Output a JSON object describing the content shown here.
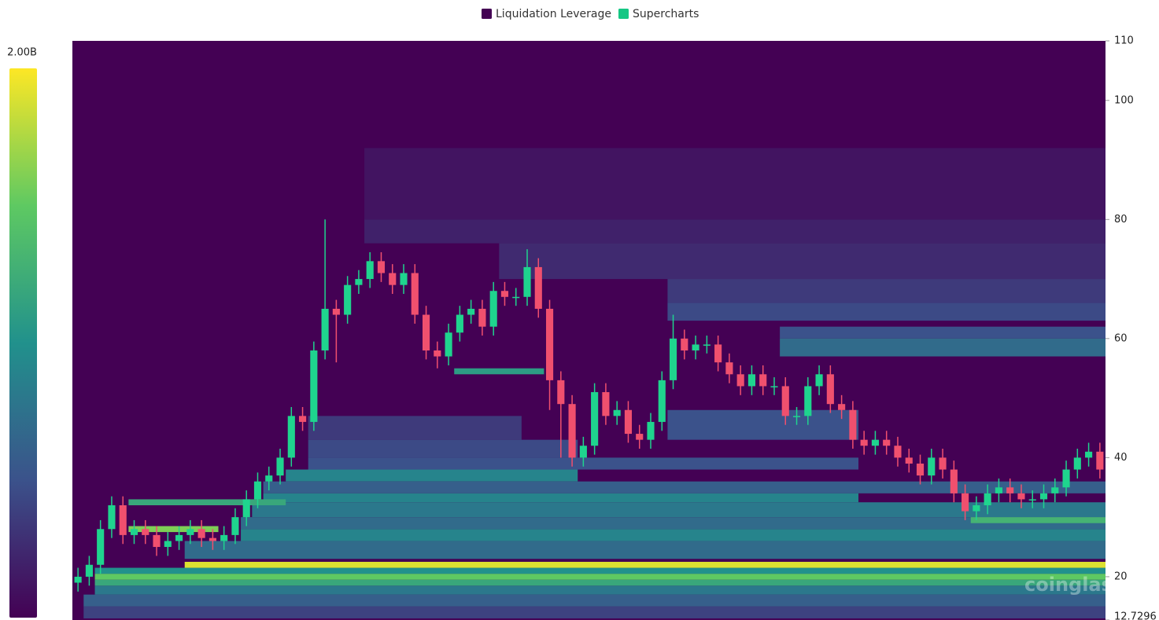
{
  "chart_data": {
    "type": "candlestick",
    "watermark": "coinglass",
    "ylim": [
      12.7296,
      110
    ],
    "yticks": [
      12.7296,
      20,
      40,
      60,
      80,
      100,
      110
    ],
    "heatmap": {
      "name": "Liquidation Leverage",
      "color": "#440154",
      "color_max": {
        "value": 2000000000,
        "label": "2.00B"
      },
      "bands": [
        {
          "from": 26,
          "to": 92,
          "low": 80,
          "high": 92,
          "value": 120000000
        },
        {
          "from": 26,
          "to": 92,
          "low": 76,
          "high": 80,
          "value": 200000000
        },
        {
          "from": 38,
          "to": 92,
          "low": 70,
          "high": 76,
          "value": 250000000
        },
        {
          "from": 53,
          "to": 92,
          "low": 66,
          "high": 70,
          "value": 350000000
        },
        {
          "from": 53,
          "to": 92,
          "low": 63,
          "high": 66,
          "value": 450000000
        },
        {
          "from": 63,
          "to": 92,
          "low": 60,
          "high": 62,
          "value": 500000000
        },
        {
          "from": 63,
          "to": 92,
          "low": 57,
          "high": 60,
          "value": 700000000
        },
        {
          "from": 21,
          "to": 40,
          "low": 43,
          "high": 47,
          "value": 350000000
        },
        {
          "from": 53,
          "to": 70,
          "low": 43,
          "high": 48,
          "value": 500000000
        },
        {
          "from": 21,
          "to": 45,
          "low": 40,
          "high": 43,
          "value": 450000000
        },
        {
          "from": 21,
          "to": 70,
          "low": 38,
          "high": 40,
          "value": 500000000
        },
        {
          "from": 19,
          "to": 45,
          "low": 36,
          "high": 38,
          "value": 900000000
        },
        {
          "from": 17,
          "to": 92,
          "low": 34,
          "high": 36,
          "value": 600000000
        },
        {
          "from": 17,
          "to": 70,
          "low": 32.5,
          "high": 34,
          "value": 900000000
        },
        {
          "from": 16,
          "to": 92,
          "low": 30,
          "high": 32.5,
          "value": 800000000
        },
        {
          "from": 15,
          "to": 92,
          "low": 28,
          "high": 30,
          "value": 700000000
        },
        {
          "from": 15,
          "to": 92,
          "low": 26,
          "high": 28,
          "value": 900000000
        },
        {
          "from": 10,
          "to": 92,
          "low": 23,
          "high": 26,
          "value": 700000000
        },
        {
          "from": 1,
          "to": 92,
          "low": 13,
          "high": 15,
          "value": 400000000
        },
        {
          "from": 1,
          "to": 92,
          "low": 15,
          "high": 17,
          "value": 600000000
        },
        {
          "from": 2,
          "to": 92,
          "low": 17,
          "high": 18.5,
          "value": 800000000
        },
        {
          "from": 2,
          "to": 92,
          "low": 18.5,
          "high": 19.5,
          "value": 1200000000
        },
        {
          "from": 2,
          "to": 92,
          "low": 19.5,
          "high": 20.5,
          "value": 1500000000
        },
        {
          "from": 2,
          "to": 92,
          "low": 20.5,
          "high": 21.5,
          "value": 1000000000
        },
        {
          "from": 10,
          "to": 92,
          "low": 21.5,
          "high": 22.5,
          "value": 1900000000
        },
        {
          "from": 5,
          "to": 13,
          "low": 27.5,
          "high": 28.5,
          "value": 1600000000
        },
        {
          "from": 5,
          "to": 19,
          "low": 32,
          "high": 33,
          "value": 1200000000
        },
        {
          "from": 34,
          "to": 42,
          "low": 54,
          "high": 55,
          "value": 1100000000
        },
        {
          "from": 80,
          "to": 92,
          "low": 29,
          "high": 30,
          "value": 1300000000
        }
      ]
    },
    "series": [
      {
        "name": "Supercharts",
        "color": "#16c784",
        "up_color": "#1fd48e",
        "down_color": "#f0506e",
        "open": [
          19,
          20,
          22,
          28,
          32,
          27,
          28,
          27,
          25,
          26,
          27,
          28,
          26.5,
          26,
          27,
          30,
          33,
          36,
          37,
          40,
          47,
          46,
          58,
          65,
          64,
          69,
          70,
          73,
          71,
          69,
          71,
          64,
          58,
          57,
          61,
          64,
          65,
          62,
          68,
          67,
          67,
          72,
          65,
          53,
          49,
          40,
          42,
          51,
          47,
          48,
          44,
          43,
          46,
          53,
          60,
          58,
          59,
          59,
          56,
          54,
          52,
          54,
          52,
          52,
          47,
          47,
          52,
          54,
          49,
          48,
          43,
          42,
          43,
          42,
          40,
          39,
          37,
          40,
          38,
          34,
          31,
          32,
          34,
          35,
          34,
          33,
          33,
          34,
          35,
          38,
          40,
          41
        ],
        "high": [
          21.5,
          23.5,
          29.5,
          33.5,
          33.5,
          29.5,
          29.5,
          28.5,
          27.5,
          28.5,
          29.5,
          29.5,
          28,
          28.5,
          31.5,
          34.5,
          37.5,
          38.5,
          41.5,
          48.5,
          48.5,
          59.5,
          80,
          66.5,
          70.5,
          71.5,
          74.5,
          74.5,
          72.5,
          72.5,
          72.5,
          65.5,
          59.5,
          62.5,
          65.5,
          66.5,
          66.5,
          69.5,
          69.5,
          68.5,
          75,
          73.5,
          66.5,
          54.5,
          50.5,
          43.5,
          52.5,
          52.5,
          49.5,
          49.5,
          45.5,
          47.5,
          54.5,
          64,
          61.5,
          60.5,
          60.5,
          60.5,
          57.5,
          55.5,
          55.5,
          55.5,
          53.5,
          53.5,
          48.5,
          53.5,
          55.5,
          55.5,
          50.5,
          49.5,
          44.5,
          44.5,
          44.5,
          43.5,
          41.5,
          40.5,
          41.5,
          41.5,
          39.5,
          35.5,
          33.5,
          35.5,
          36.5,
          36.5,
          35.5,
          34.5,
          35.5,
          36.5,
          39.5,
          41.5,
          42.5,
          42.5
        ],
        "low": [
          17.5,
          18.5,
          20.5,
          26.5,
          25.5,
          25.5,
          25.5,
          23.5,
          23.5,
          24.5,
          25.5,
          25,
          24.5,
          24.5,
          25.5,
          28.5,
          31.5,
          34.5,
          35.5,
          38.5,
          44.5,
          44.5,
          56.5,
          56,
          62.5,
          67.5,
          68.5,
          69.5,
          67.5,
          67.5,
          62.5,
          56.5,
          55,
          55.5,
          59.5,
          62.5,
          60.5,
          60.5,
          65.5,
          65.5,
          65.5,
          63.5,
          48,
          40,
          38.5,
          38.5,
          40.5,
          45.5,
          45.5,
          42.5,
          41.5,
          41.5,
          44.5,
          51.5,
          56.5,
          56.5,
          57.5,
          54.5,
          52.5,
          50.5,
          50.5,
          50.5,
          50.5,
          45.5,
          45.5,
          45.5,
          50.5,
          47.5,
          46.5,
          41.5,
          40.5,
          40.5,
          40.5,
          38.5,
          37.5,
          35.5,
          35.5,
          36.5,
          32.5,
          29.5,
          29.5,
          30.5,
          32.5,
          32.5,
          31.5,
          31.5,
          31.5,
          32.5,
          33.5,
          36.5,
          38.5,
          36.5
        ],
        "close": [
          20,
          22,
          28,
          32,
          27,
          28,
          27,
          25,
          26,
          27,
          28,
          26.5,
          26,
          27,
          30,
          33,
          36,
          37,
          40,
          47,
          46,
          58,
          65,
          64,
          69,
          70,
          73,
          71,
          69,
          71,
          64,
          58,
          57,
          61,
          64,
          65,
          62,
          68,
          67,
          67,
          72,
          65,
          53,
          49,
          40,
          42,
          51,
          47,
          48,
          44,
          43,
          46,
          53,
          60,
          58,
          59,
          59,
          56,
          54,
          52,
          54,
          52,
          52,
          47,
          47,
          52,
          54,
          49,
          48,
          43,
          42,
          43,
          42,
          40,
          39,
          37,
          40,
          38,
          34,
          31,
          32,
          34,
          35,
          34,
          33,
          33,
          34,
          35,
          38,
          40,
          41,
          38
        ]
      }
    ]
  }
}
